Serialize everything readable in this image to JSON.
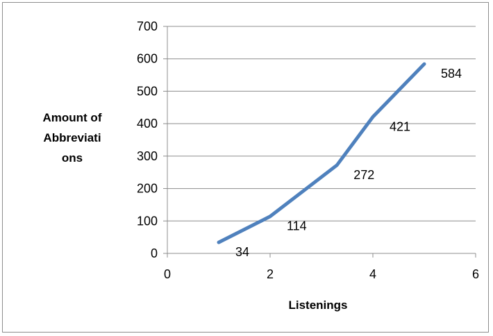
{
  "chart_data": {
    "type": "line",
    "x": [
      1,
      2,
      3.3,
      4,
      5
    ],
    "series": [
      {
        "values": [
          34,
          114,
          272,
          421,
          584
        ],
        "color": "#4f81bd"
      }
    ],
    "data_labels": [
      "34",
      "114",
      "272",
      "421",
      "584"
    ],
    "xlabel": "Listenings",
    "ylabel_lines": [
      "Amount of",
      "Abbreviati",
      "ons"
    ],
    "xlim": [
      0,
      6
    ],
    "ylim": [
      0,
      700
    ],
    "x_ticks": [
      "0",
      "2",
      "4",
      "6"
    ],
    "y_ticks": [
      "0",
      "100",
      "200",
      "300",
      "400",
      "500",
      "600",
      "700"
    ],
    "grid": true,
    "legend": false
  }
}
